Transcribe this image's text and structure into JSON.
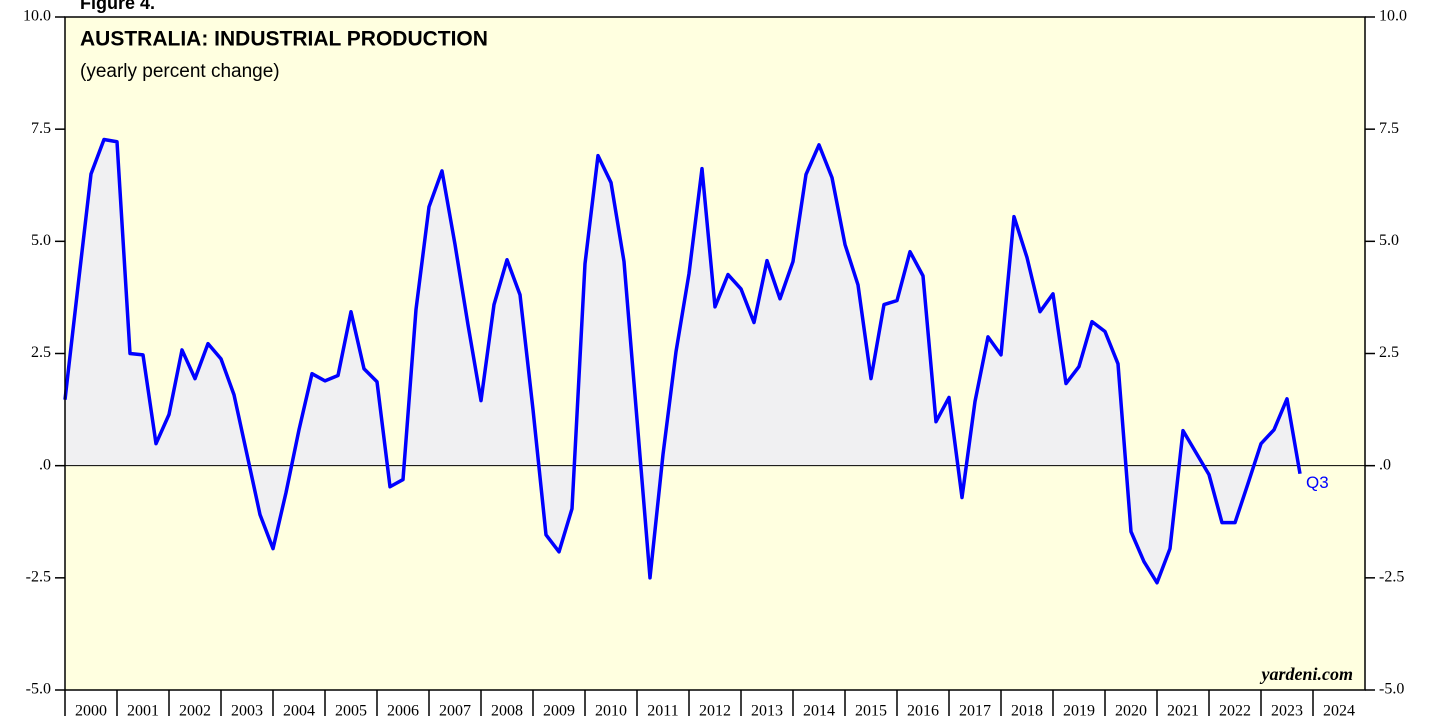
{
  "figure_label": "Figure 4.",
  "chart_data": {
    "type": "line",
    "title": "AUSTRALIA: INDUSTRIAL PRODUCTION",
    "subtitle": "(yearly percent change)",
    "source": "yardeni.com",
    "annotation": "Q3",
    "background": "#ffffe0",
    "area_color": "#f0f0f2",
    "xlim": [
      2000,
      2025
    ],
    "xticks": [
      {
        "value": 2000,
        "label": "2000"
      },
      {
        "value": 2001,
        "label": "2001"
      },
      {
        "value": 2002,
        "label": "2002"
      },
      {
        "value": 2003,
        "label": "2003"
      },
      {
        "value": 2004,
        "label": "2004"
      },
      {
        "value": 2005,
        "label": "2005"
      },
      {
        "value": 2006,
        "label": "2006"
      },
      {
        "value": 2007,
        "label": "2007"
      },
      {
        "value": 2008,
        "label": "2008"
      },
      {
        "value": 2009,
        "label": "2009"
      },
      {
        "value": 2010,
        "label": "2010"
      },
      {
        "value": 2011,
        "label": "2011"
      },
      {
        "value": 2012,
        "label": "2012"
      },
      {
        "value": 2013,
        "label": "2013"
      },
      {
        "value": 2014,
        "label": "2014"
      },
      {
        "value": 2015,
        "label": "2015"
      },
      {
        "value": 2016,
        "label": "2016"
      },
      {
        "value": 2017,
        "label": "2017"
      },
      {
        "value": 2018,
        "label": "2018"
      },
      {
        "value": 2019,
        "label": "2019"
      },
      {
        "value": 2020,
        "label": "2020"
      },
      {
        "value": 2021,
        "label": "2021"
      },
      {
        "value": 2022,
        "label": "2022"
      },
      {
        "value": 2023,
        "label": "2023"
      },
      {
        "value": 2024,
        "label": "2024"
      }
    ],
    "ylim": [
      -5,
      10
    ],
    "yticks": [
      {
        "value": -5,
        "label": "-5.0"
      },
      {
        "value": -2.5,
        "label": "-2.5"
      },
      {
        "value": 0,
        "label": ".0"
      },
      2.5,
      {
        "value": 5,
        "label": "5.0"
      },
      7.5,
      {
        "value": 10,
        "label": "10.0"
      }
    ],
    "x": [
      2000,
      2000.25,
      2000.5,
      2000.75,
      2001,
      2001.25,
      2001.5,
      2001.75,
      2002,
      2002.25,
      2002.5,
      2002.75,
      2003,
      2003.25,
      2003.5,
      2003.75,
      2004,
      2004.25,
      2004.5,
      2004.75,
      2005,
      2005.25,
      2005.5,
      2005.75,
      2006,
      2006.25,
      2006.5,
      2006.75,
      2007,
      2007.25,
      2007.5,
      2007.75,
      2008,
      2008.25,
      2008.5,
      2008.75,
      2009,
      2009.25,
      2009.5,
      2009.75,
      2010,
      2010.25,
      2010.5,
      2010.75,
      2011,
      2011.25,
      2011.5,
      2011.75,
      2012,
      2012.25,
      2012.5,
      2012.75,
      2013,
      2013.25,
      2013.5,
      2013.75,
      2014,
      2014.25,
      2014.5,
      2014.75,
      2015,
      2015.25,
      2015.5,
      2015.75,
      2016,
      2016.25,
      2016.5,
      2016.75,
      2017,
      2017.25,
      2017.5,
      2017.75,
      2018,
      2018.25,
      2018.5,
      2018.75,
      2019,
      2019.25,
      2019.5,
      2019.75,
      2020,
      2020.25,
      2020.5,
      2020.75,
      2021,
      2021.25,
      2021.5,
      2021.75,
      2022,
      2022.25,
      2022.5,
      2022.75,
      2023,
      2023.25,
      2023.5,
      2023.75
    ],
    "series": [
      {
        "name": "Industrial production",
        "color": "#0000ff",
        "values": [
          1.47,
          4.0,
          6.5,
          7.27,
          7.22,
          2.5,
          2.47,
          0.49,
          1.14,
          2.58,
          1.94,
          2.72,
          2.38,
          1.58,
          0.25,
          -1.09,
          -1.85,
          -0.6,
          0.8,
          2.05,
          1.89,
          2.01,
          3.43,
          2.16,
          1.87,
          -0.47,
          -0.31,
          3.48,
          5.77,
          6.57,
          4.93,
          3.14,
          1.45,
          3.59,
          4.59,
          3.81,
          1.25,
          -1.54,
          -1.92,
          -0.96,
          4.5,
          6.91,
          6.31,
          4.55,
          1.03,
          -2.5,
          0.25,
          2.54,
          4.28,
          6.62,
          3.54,
          4.26,
          3.94,
          3.19,
          4.57,
          3.72,
          4.55,
          6.49,
          7.15,
          6.42,
          4.93,
          4.03,
          1.94,
          3.59,
          3.68,
          4.77,
          4.23,
          0.98,
          1.52,
          -0.71,
          1.43,
          2.87,
          2.47,
          5.55,
          4.64,
          3.43,
          3.83,
          1.83,
          2.21,
          3.21,
          2.99,
          2.27,
          -1.47,
          -2.14,
          -2.61,
          -1.85,
          0.78,
          0.29,
          -0.2,
          -1.27,
          -1.27,
          -0.4,
          0.49,
          0.8,
          1.49,
          -0.18
        ]
      }
    ]
  }
}
